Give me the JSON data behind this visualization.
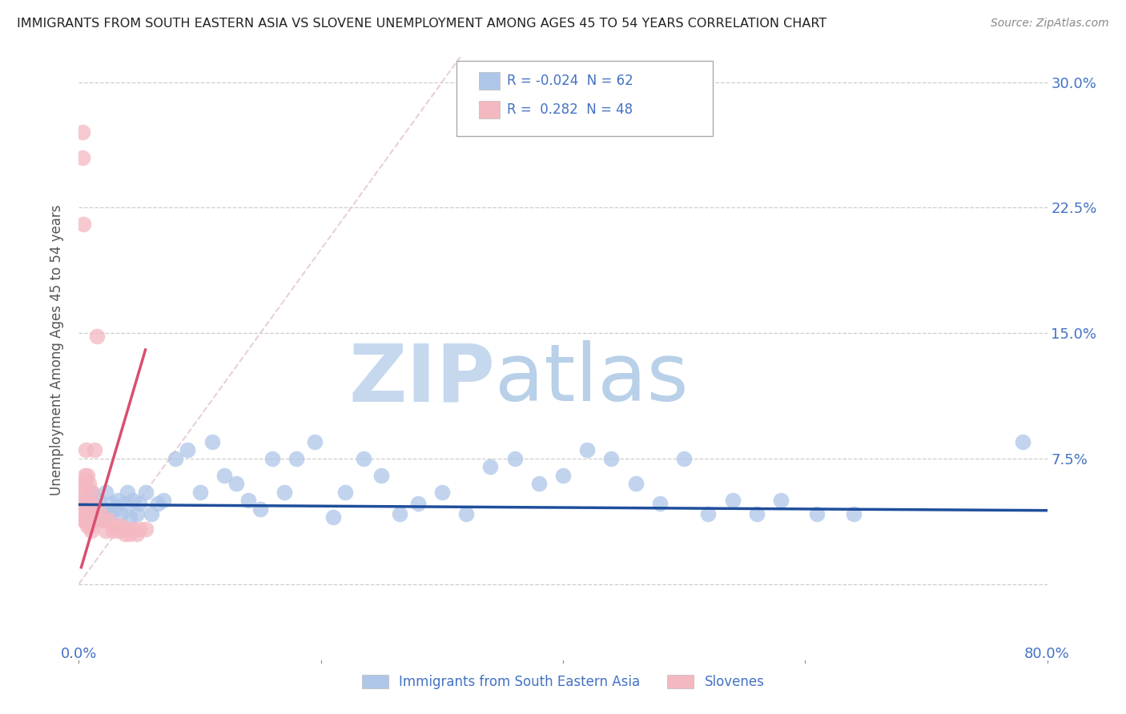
{
  "title": "IMMIGRANTS FROM SOUTH EASTERN ASIA VS SLOVENE UNEMPLOYMENT AMONG AGES 45 TO 54 YEARS CORRELATION CHART",
  "source": "Source: ZipAtlas.com",
  "ylabel": "Unemployment Among Ages 45 to 54 years",
  "xlim": [
    0.0,
    0.8
  ],
  "ylim": [
    -0.035,
    0.315
  ],
  "yticks": [
    0.0,
    0.075,
    0.15,
    0.225,
    0.3
  ],
  "ytick_labels": [
    "",
    "7.5%",
    "15.0%",
    "22.5%",
    "30.0%"
  ],
  "xticks": [
    0.0,
    0.2,
    0.4,
    0.6,
    0.8
  ],
  "xtick_labels": [
    "0.0%",
    "",
    "",
    "",
    "80.0%"
  ],
  "legend_entries": [
    {
      "color": "#aec6e8",
      "label": "Immigrants from South Eastern Asia",
      "R": "-0.024",
      "N": "62"
    },
    {
      "color": "#f4b8c1",
      "label": "Slovenes",
      "R": "0.282",
      "N": "48"
    }
  ],
  "blue_scatter_x": [
    0.005,
    0.008,
    0.01,
    0.01,
    0.012,
    0.013,
    0.015,
    0.016,
    0.018,
    0.02,
    0.022,
    0.025,
    0.027,
    0.03,
    0.032,
    0.035,
    0.038,
    0.04,
    0.042,
    0.045,
    0.048,
    0.05,
    0.055,
    0.06,
    0.065,
    0.07,
    0.08,
    0.09,
    0.1,
    0.11,
    0.12,
    0.13,
    0.14,
    0.15,
    0.16,
    0.17,
    0.18,
    0.195,
    0.21,
    0.22,
    0.235,
    0.25,
    0.265,
    0.28,
    0.3,
    0.32,
    0.34,
    0.36,
    0.38,
    0.4,
    0.42,
    0.44,
    0.46,
    0.48,
    0.5,
    0.52,
    0.54,
    0.56,
    0.58,
    0.61,
    0.64,
    0.78
  ],
  "blue_scatter_y": [
    0.05,
    0.045,
    0.055,
    0.04,
    0.048,
    0.042,
    0.045,
    0.05,
    0.04,
    0.045,
    0.055,
    0.042,
    0.048,
    0.045,
    0.05,
    0.042,
    0.048,
    0.055,
    0.04,
    0.05,
    0.042,
    0.048,
    0.055,
    0.042,
    0.048,
    0.05,
    0.075,
    0.08,
    0.055,
    0.085,
    0.065,
    0.06,
    0.05,
    0.045,
    0.075,
    0.055,
    0.075,
    0.085,
    0.04,
    0.055,
    0.075,
    0.065,
    0.042,
    0.048,
    0.055,
    0.042,
    0.07,
    0.075,
    0.06,
    0.065,
    0.08,
    0.075,
    0.06,
    0.048,
    0.075,
    0.042,
    0.05,
    0.042,
    0.05,
    0.042,
    0.042,
    0.085
  ],
  "pink_scatter_x": [
    0.002,
    0.002,
    0.003,
    0.003,
    0.003,
    0.004,
    0.004,
    0.004,
    0.005,
    0.005,
    0.005,
    0.005,
    0.006,
    0.006,
    0.006,
    0.007,
    0.007,
    0.007,
    0.008,
    0.008,
    0.008,
    0.009,
    0.009,
    0.01,
    0.01,
    0.01,
    0.011,
    0.011,
    0.012,
    0.013,
    0.014,
    0.015,
    0.016,
    0.018,
    0.02,
    0.022,
    0.025,
    0.028,
    0.03,
    0.033,
    0.035,
    0.038,
    0.04,
    0.042,
    0.045,
    0.048,
    0.05,
    0.055
  ],
  "pink_scatter_y": [
    0.055,
    0.042,
    0.27,
    0.255,
    0.06,
    0.215,
    0.048,
    0.038,
    0.065,
    0.055,
    0.045,
    0.038,
    0.08,
    0.062,
    0.04,
    0.065,
    0.048,
    0.035,
    0.06,
    0.048,
    0.038,
    0.045,
    0.035,
    0.048,
    0.038,
    0.032,
    0.055,
    0.038,
    0.038,
    0.08,
    0.042,
    0.148,
    0.038,
    0.042,
    0.038,
    0.032,
    0.038,
    0.032,
    0.035,
    0.032,
    0.035,
    0.03,
    0.033,
    0.03,
    0.033,
    0.03,
    0.033,
    0.033
  ],
  "blue_line_x": [
    0.0,
    0.8
  ],
  "blue_line_y": [
    0.0475,
    0.044
  ],
  "pink_line_x": [
    0.002,
    0.055
  ],
  "pink_line_y": [
    0.01,
    0.14
  ],
  "diagonal_line_x": [
    0.0,
    0.315
  ],
  "diagonal_line_y": [
    0.0,
    0.315
  ],
  "title_color": "#222222",
  "axis_color": "#4472c4",
  "grid_color": "#c8c8c8",
  "blue_scatter_color": "#aec6e8",
  "pink_scatter_color": "#f4b8c1",
  "blue_line_color": "#1f4e9c",
  "pink_line_color": "#d94f6e",
  "diagonal_color": "#e8d0d8",
  "watermark_text": "ZIPatlas",
  "watermark_color": "#d8e8f5",
  "background_color": "#ffffff"
}
